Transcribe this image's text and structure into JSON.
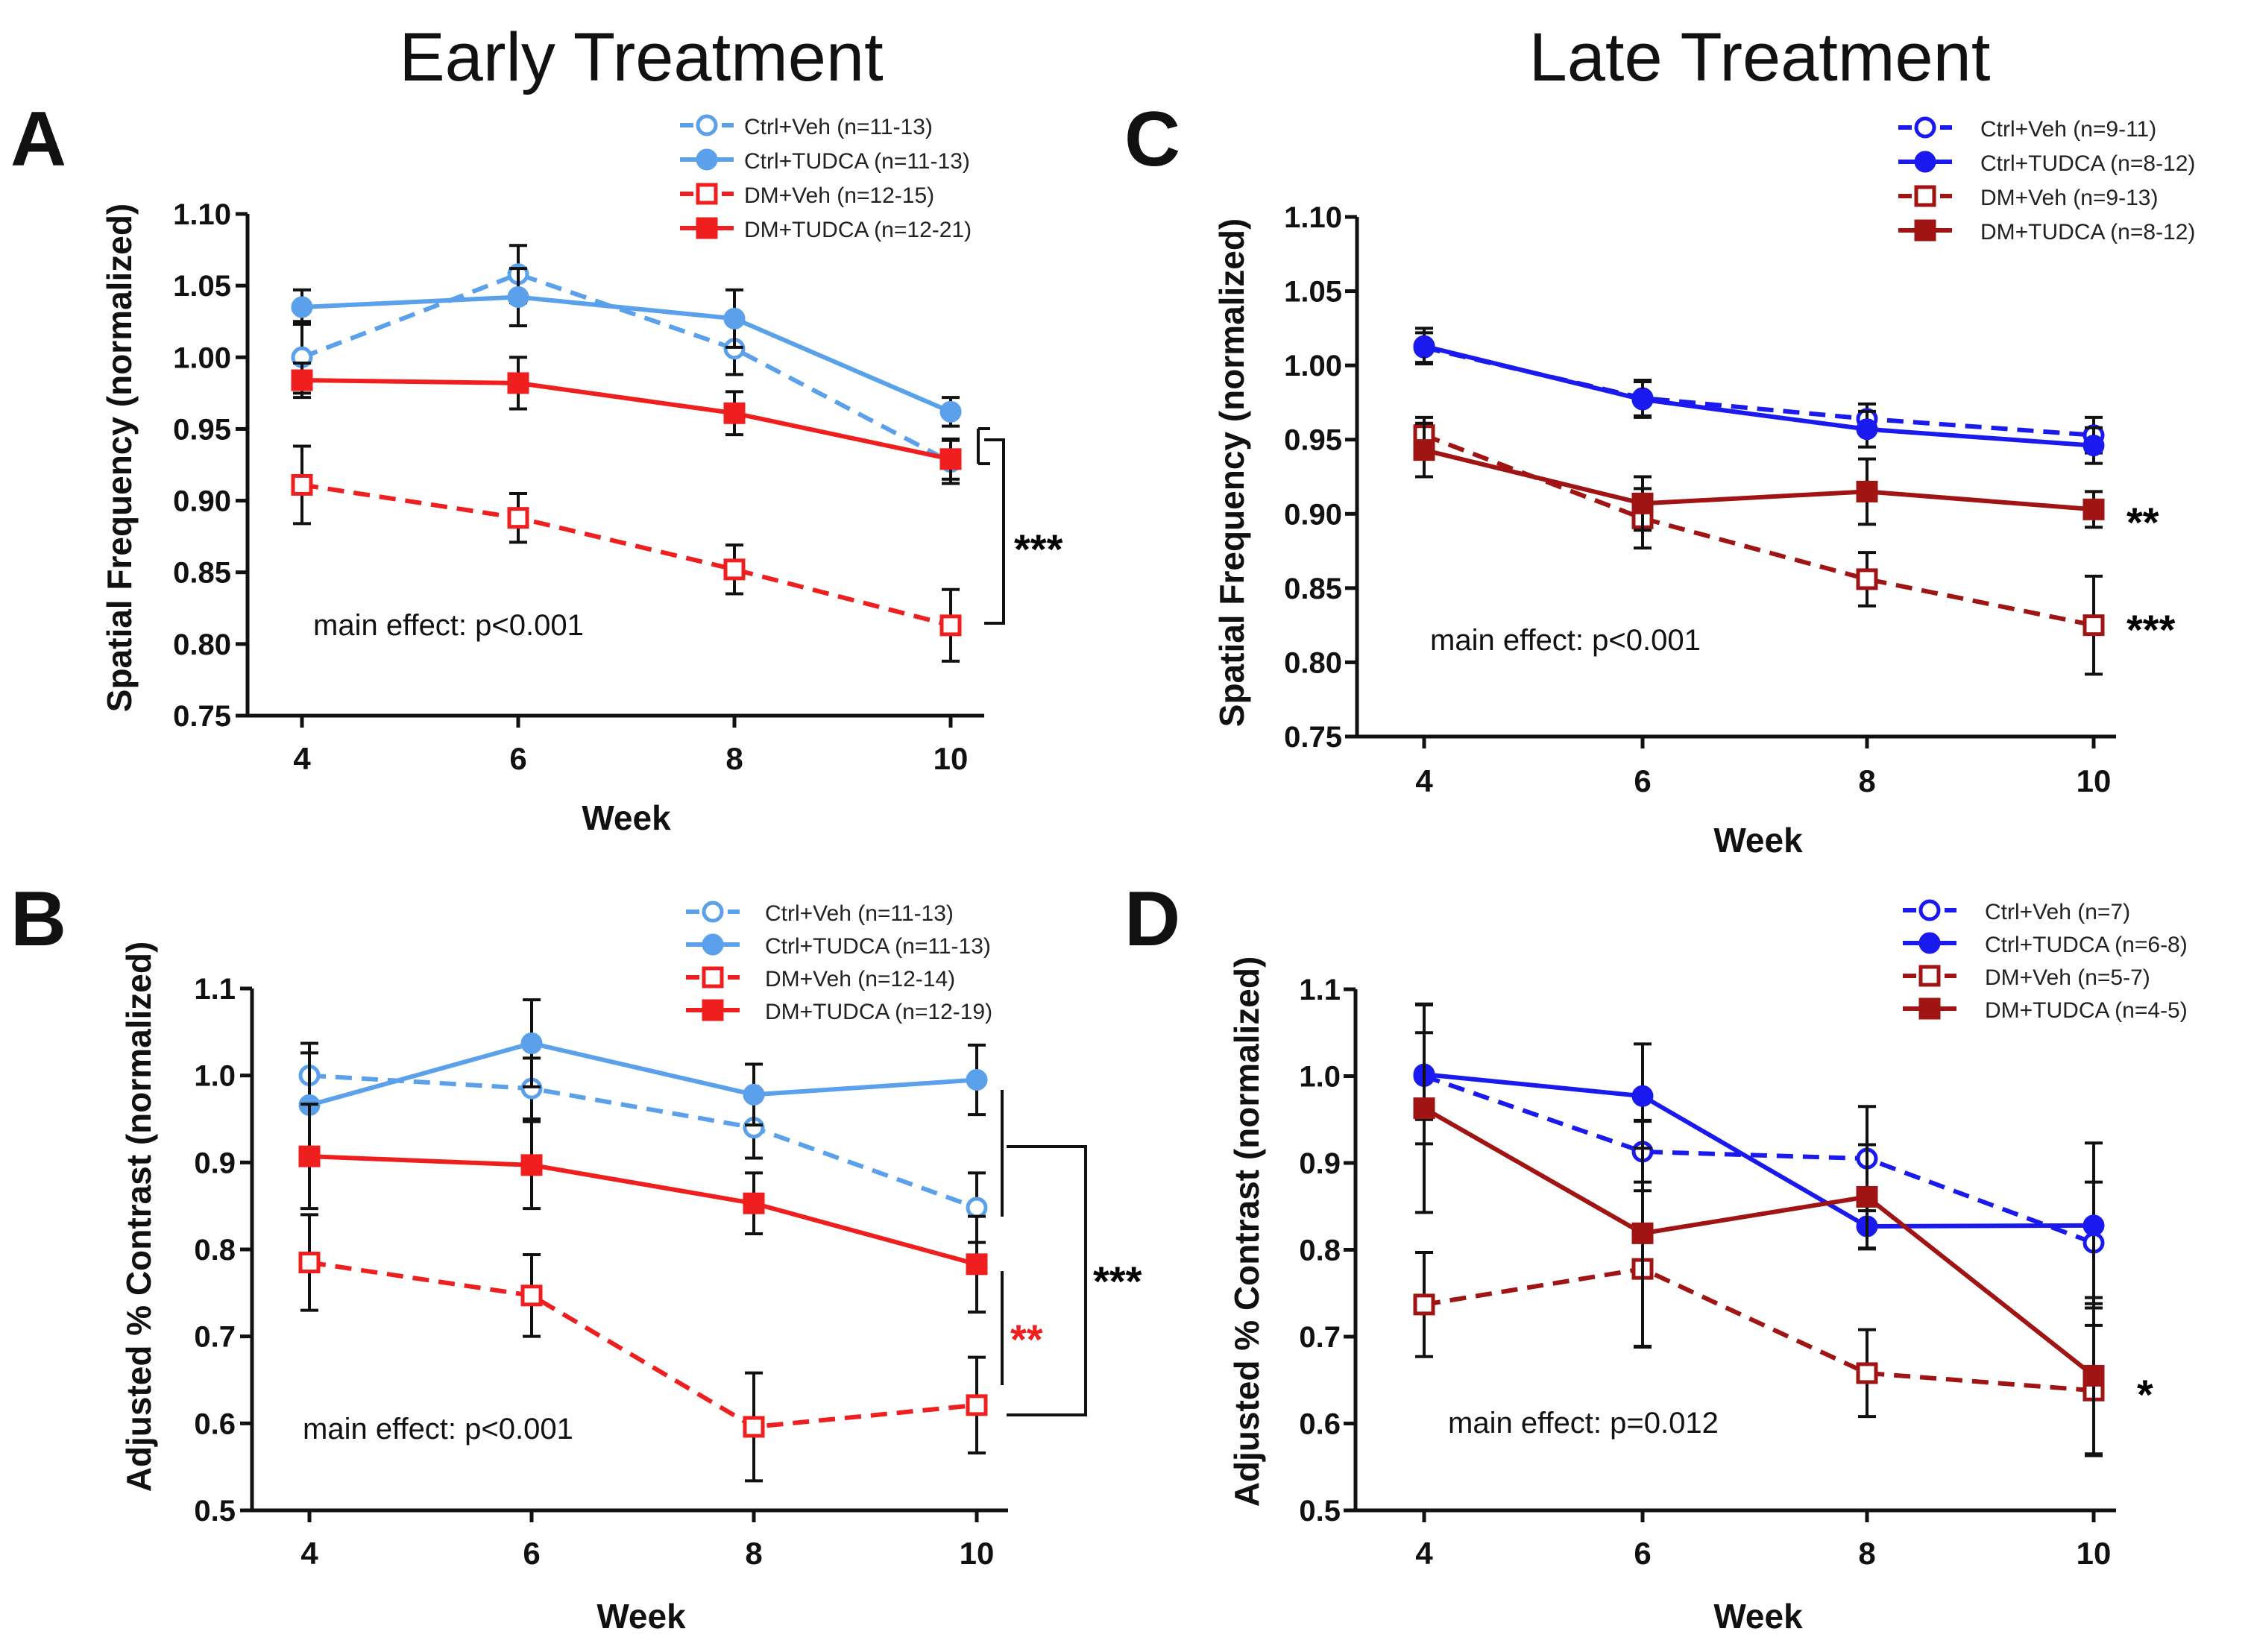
{
  "column_titles": {
    "left": "Early Treatment",
    "right": "Late Treatment"
  },
  "colors": {
    "early_ctrl": "#5aa0ea",
    "early_dm": "#f01f1f",
    "late_ctrl": "#1a1aee",
    "late_dm": "#a01414",
    "ink": "#111111"
  },
  "chart_data": [
    {
      "id": "A",
      "panel_label": "A",
      "type": "line",
      "ylabel": "Spatial Frequency (normalized)",
      "xlabel": "Week",
      "x": [
        4,
        6,
        8,
        10
      ],
      "xticks": [
        "4",
        "6",
        "8",
        "10"
      ],
      "ylim": [
        0.75,
        1.1
      ],
      "yticks": [
        "0.75",
        "0.80",
        "0.85",
        "0.90",
        "0.95",
        "1.00",
        "1.05",
        "1.10"
      ],
      "annotation": "main effect: p<0.001",
      "series": [
        {
          "name": "Ctrl+Veh (n=11-13)",
          "color_key": "early_ctrl",
          "marker": "circle",
          "filled": false,
          "dashed": true,
          "values": [
            1.0,
            1.058,
            1.006,
            0.927
          ],
          "errors": [
            0.025,
            0.02,
            0.018,
            0.015
          ]
        },
        {
          "name": "Ctrl+TUDCA (n=11-13)",
          "color_key": "early_ctrl",
          "marker": "circle",
          "filled": true,
          "dashed": false,
          "values": [
            1.035,
            1.042,
            1.027,
            0.962
          ],
          "errors": [
            0.012,
            0.02,
            0.02,
            0.01
          ]
        },
        {
          "name": "DM+Veh (n=12-15)",
          "color_key": "early_dm",
          "marker": "square",
          "filled": false,
          "dashed": true,
          "values": [
            0.911,
            0.888,
            0.852,
            0.813
          ],
          "errors": [
            0.027,
            0.017,
            0.017,
            0.025
          ]
        },
        {
          "name": "DM+TUDCA (n=12-21)",
          "color_key": "early_dm",
          "marker": "square",
          "filled": true,
          "dashed": false,
          "values": [
            0.984,
            0.982,
            0.961,
            0.929
          ],
          "errors": [
            0.012,
            0.018,
            0.015,
            0.014
          ]
        }
      ],
      "significance": [
        {
          "text": "***",
          "color_key": "ink"
        }
      ]
    },
    {
      "id": "B",
      "panel_label": "B",
      "type": "line",
      "ylabel": "Adjusted % Contrast (normalized)",
      "xlabel": "Week",
      "x": [
        4,
        6,
        8,
        10
      ],
      "xticks": [
        "4",
        "6",
        "8",
        "10"
      ],
      "ylim": [
        0.5,
        1.1
      ],
      "yticks": [
        "0.5",
        "0.6",
        "0.7",
        "0.8",
        "0.9",
        "1.0",
        "1.1"
      ],
      "annotation": "main effect: p<0.001",
      "series": [
        {
          "name": "Ctrl+Veh (n=11-13)",
          "color_key": "early_ctrl",
          "marker": "circle",
          "filled": false,
          "dashed": true,
          "values": [
            1.0,
            0.985,
            0.94,
            0.848
          ],
          "errors": [
            0.037,
            0.035,
            0.035,
            0.04
          ]
        },
        {
          "name": "Ctrl+TUDCA (n=11-13)",
          "color_key": "early_ctrl",
          "marker": "circle",
          "filled": true,
          "dashed": false,
          "values": [
            0.966,
            1.037,
            0.978,
            0.995
          ],
          "errors": [
            0.06,
            0.05,
            0.035,
            0.04
          ]
        },
        {
          "name": "DM+Veh (n=12-14)",
          "color_key": "early_dm",
          "marker": "square",
          "filled": false,
          "dashed": true,
          "values": [
            0.785,
            0.747,
            0.596,
            0.621
          ],
          "errors": [
            0.055,
            0.047,
            0.062,
            0.055
          ]
        },
        {
          "name": "DM+TUDCA (n=12-19)",
          "color_key": "early_dm",
          "marker": "square",
          "filled": true,
          "dashed": false,
          "values": [
            0.907,
            0.897,
            0.853,
            0.783
          ],
          "errors": [
            0.06,
            0.05,
            0.035,
            0.055
          ]
        }
      ],
      "significance": [
        {
          "text": "**",
          "color_key": "early_dm"
        },
        {
          "text": "***",
          "color_key": "ink"
        }
      ]
    },
    {
      "id": "C",
      "panel_label": "C",
      "type": "line",
      "ylabel": "Spatial Frequency (normalized)",
      "xlabel": "Week",
      "x": [
        4,
        6,
        8,
        10
      ],
      "xticks": [
        "4",
        "6",
        "8",
        "10"
      ],
      "ylim": [
        0.75,
        1.1
      ],
      "yticks": [
        "0.75",
        "0.80",
        "0.85",
        "0.90",
        "0.95",
        "1.00",
        "1.05",
        "1.10"
      ],
      "annotation": "main effect: p<0.001",
      "series": [
        {
          "name": "Ctrl+Veh (n=9-11)",
          "color_key": "late_ctrl",
          "marker": "circle",
          "filled": false,
          "dashed": true,
          "values": [
            1.012,
            0.978,
            0.964,
            0.953
          ],
          "errors": [
            0.01,
            0.012,
            0.01,
            0.012
          ]
        },
        {
          "name": "Ctrl+TUDCA (n=8-12)",
          "color_key": "late_ctrl",
          "marker": "circle",
          "filled": true,
          "dashed": false,
          "values": [
            1.013,
            0.977,
            0.957,
            0.946
          ],
          "errors": [
            0.012,
            0.012,
            0.012,
            0.012
          ]
        },
        {
          "name": "DM+Veh (n=9-13)",
          "color_key": "late_dm",
          "marker": "square",
          "filled": false,
          "dashed": true,
          "values": [
            0.953,
            0.897,
            0.856,
            0.825
          ],
          "errors": [
            0.012,
            0.02,
            0.018,
            0.033
          ]
        },
        {
          "name": "DM+TUDCA (n=8-12)",
          "color_key": "late_dm",
          "marker": "square",
          "filled": true,
          "dashed": false,
          "values": [
            0.943,
            0.907,
            0.915,
            0.903
          ],
          "errors": [
            0.018,
            0.018,
            0.022,
            0.012
          ]
        }
      ],
      "significance": [
        {
          "text": "**",
          "color_key": "ink"
        },
        {
          "text": "***",
          "color_key": "ink"
        }
      ]
    },
    {
      "id": "D",
      "panel_label": "D",
      "type": "line",
      "ylabel": "Adjusted % Contrast (normalized)",
      "xlabel": "Week",
      "x": [
        4,
        6,
        8,
        10
      ],
      "xticks": [
        "4",
        "6",
        "8",
        "10"
      ],
      "ylim": [
        0.5,
        1.1
      ],
      "yticks": [
        "0.5",
        "0.6",
        "0.7",
        "0.8",
        "0.9",
        "1.0",
        "1.1"
      ],
      "annotation": "main effect: p=0.012",
      "series": [
        {
          "name": "Ctrl+Veh (n=7)",
          "color_key": "late_ctrl",
          "marker": "circle",
          "filled": false,
          "dashed": true,
          "values": [
            1.0,
            0.913,
            0.905,
            0.808
          ],
          "errors": [
            0.05,
            0.035,
            0.06,
            0.07
          ]
        },
        {
          "name": "Ctrl+TUDCA (n=6-8)",
          "color_key": "late_ctrl",
          "marker": "circle",
          "filled": true,
          "dashed": false,
          "values": [
            1.002,
            0.977,
            0.827,
            0.828
          ],
          "errors": [
            0.08,
            0.06,
            0.025,
            0.095
          ]
        },
        {
          "name": "DM+Veh (n=5-7)",
          "color_key": "late_dm",
          "marker": "square",
          "filled": false,
          "dashed": true,
          "values": [
            0.737,
            0.778,
            0.658,
            0.638
          ],
          "errors": [
            0.06,
            0.09,
            0.05,
            0.075
          ]
        },
        {
          "name": "DM+TUDCA (n=4-5)",
          "color_key": "late_dm",
          "marker": "square",
          "filled": true,
          "dashed": false,
          "values": [
            0.963,
            0.819,
            0.861,
            0.655
          ],
          "errors": [
            0.12,
            0.13,
            0.06,
            0.09
          ]
        }
      ],
      "significance": [
        {
          "text": "*",
          "color_key": "ink"
        }
      ]
    }
  ]
}
